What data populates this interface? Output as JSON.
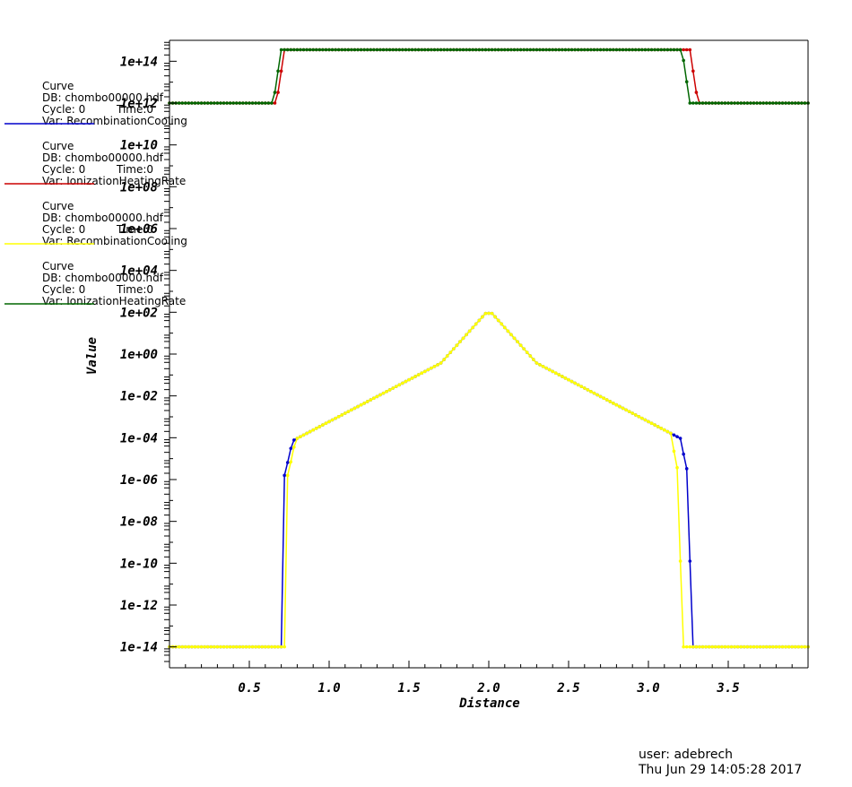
{
  "chart_data": {
    "type": "line",
    "xlabel": "Distance",
    "ylabel": "Value",
    "xlim": [
      0.0,
      4.0
    ],
    "ylog": true,
    "ylim_exp": [
      -15,
      15
    ],
    "x_ticks": [
      "0.5",
      "1.0",
      "1.5",
      "2.0",
      "2.5",
      "3.0",
      "3.5"
    ],
    "x_tick_values": [
      0.5,
      1.0,
      1.5,
      2.0,
      2.5,
      3.0,
      3.5
    ],
    "y_ticks": [
      "1e-14",
      "1e-12",
      "1e-10",
      "1e-08",
      "1e-06",
      "1e-04",
      "1e-02",
      "1e+00",
      "1e+02",
      "1e+04",
      "1e+06",
      "1e+08",
      "1e+10",
      "1e+12",
      "1e+14"
    ],
    "y_tick_exponents": [
      -14,
      -12,
      -10,
      -8,
      -6,
      -4,
      -2,
      0,
      2,
      4,
      6,
      8,
      10,
      12,
      14
    ],
    "legend_placement": "left",
    "series": [
      {
        "legend_title": "Curve",
        "db": "DB: chombo00000.hdf",
        "cycle": "Cycle: 0",
        "time": "Time:0",
        "var": "Var: RecombinationCooling",
        "color": "#0000cc",
        "kind": "cooling_blue"
      },
      {
        "legend_title": "Curve",
        "db": "DB: chombo00000.hdf",
        "cycle": "Cycle: 0",
        "time": "Time:0",
        "var": "Var: IonizationHeatingRate",
        "color": "#cc0000",
        "kind": "heating_red"
      },
      {
        "legend_title": "Curve",
        "db": "DB: chombo00000.hdf",
        "cycle": "Cycle: 0",
        "time": "Time:0",
        "var": "Var: RecombinationCooling",
        "color": "#ffff00",
        "kind": "cooling_yellow"
      },
      {
        "legend_title": "Curve",
        "db": "DB: chombo00000.hdf",
        "cycle": "Cycle: 0",
        "time": "Time:0",
        "var": "Var: IonizationHeatingRate",
        "color": "#006600",
        "kind": "heating_green"
      }
    ]
  },
  "footer": {
    "user": "user: adebrech",
    "date": "Thu Jun 29 14:05:28 2017"
  }
}
